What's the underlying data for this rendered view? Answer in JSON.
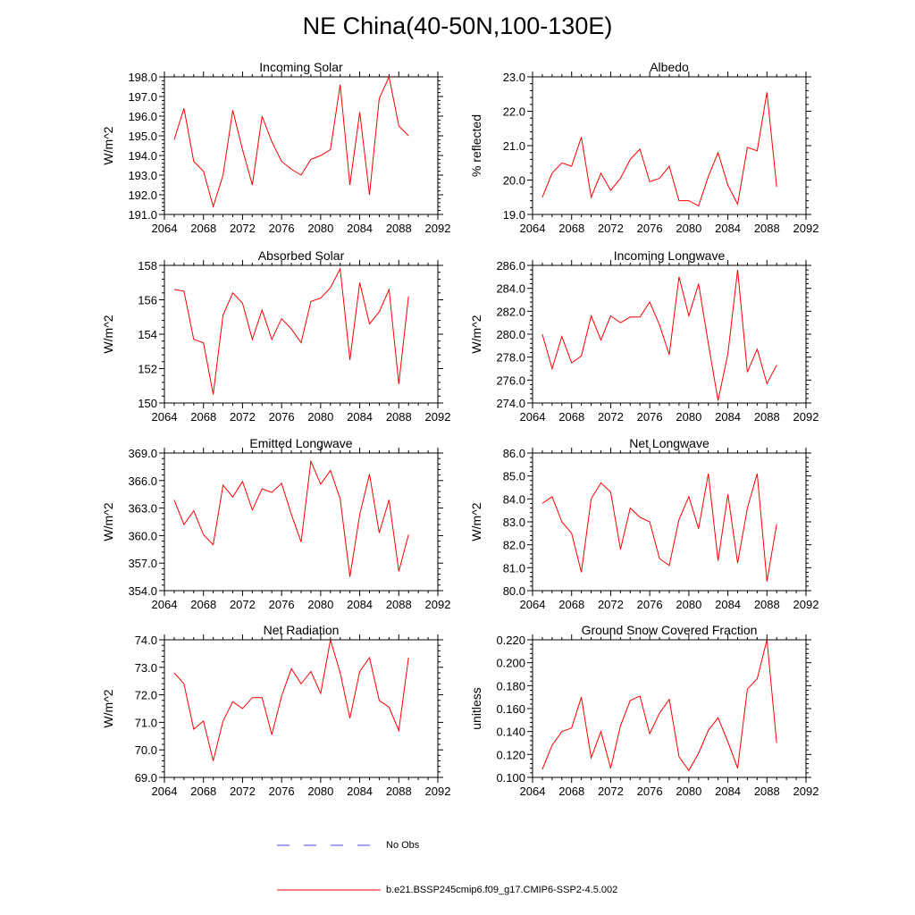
{
  "title": "NE China(40-50N,100-130E)",
  "legend": {
    "obs_label": "No Obs",
    "model_label": "b.e21.BSSP245cmip6.f09_g17.CMIP6-SSP2-4.5.002",
    "obs_color": "#4a4aff",
    "model_color": "#ff0000"
  },
  "chart_data": [
    {
      "type": "line",
      "title": "Incoming Solar",
      "xlabel": "",
      "ylabel": "W/m^2",
      "xlim": [
        2064,
        2092
      ],
      "ylim": [
        191.0,
        198.0
      ],
      "decimals": 1,
      "xticks": [
        2064,
        2068,
        2072,
        2076,
        2080,
        2084,
        2088,
        2092
      ],
      "yticks": [
        191.0,
        192.0,
        193.0,
        194.0,
        195.0,
        196.0,
        197.0,
        198.0
      ],
      "x": [
        2065,
        2066,
        2067,
        2068,
        2069,
        2070,
        2071,
        2072,
        2073,
        2074,
        2075,
        2076,
        2077,
        2078,
        2079,
        2080,
        2081,
        2082,
        2083,
        2084,
        2085,
        2086,
        2087,
        2088,
        2089
      ],
      "series": [
        {
          "name": "b.e21.BSSP245cmip6.f09_g17.CMIP6-SSP2-4.5.002",
          "values": [
            194.8,
            196.4,
            193.7,
            193.2,
            191.4,
            193.0,
            196.3,
            194.3,
            192.5,
            196.0,
            194.7,
            193.7,
            193.3,
            193.0,
            193.8,
            194.0,
            194.3,
            197.6,
            192.5,
            196.2,
            192.0,
            196.9,
            198.0,
            195.5,
            195.0
          ]
        }
      ]
    },
    {
      "type": "line",
      "title": "Albedo",
      "xlabel": "",
      "ylabel": "% reflected",
      "xlim": [
        2064,
        2092
      ],
      "ylim": [
        19.0,
        23.0
      ],
      "decimals": 1,
      "xticks": [
        2064,
        2068,
        2072,
        2076,
        2080,
        2084,
        2088,
        2092
      ],
      "yticks": [
        19.0,
        20.0,
        21.0,
        22.0,
        23.0
      ],
      "x": [
        2065,
        2066,
        2067,
        2068,
        2069,
        2070,
        2071,
        2072,
        2073,
        2074,
        2075,
        2076,
        2077,
        2078,
        2079,
        2080,
        2081,
        2082,
        2083,
        2084,
        2085,
        2086,
        2087,
        2088,
        2089
      ],
      "series": [
        {
          "name": "b.e21.BSSP245cmip6.f09_g17.CMIP6-SSP2-4.5.002",
          "values": [
            19.5,
            20.2,
            20.5,
            20.4,
            21.25,
            19.5,
            20.2,
            19.7,
            20.05,
            20.6,
            20.9,
            19.95,
            20.05,
            20.4,
            19.4,
            19.4,
            19.25,
            20.1,
            20.8,
            19.85,
            19.3,
            20.95,
            20.85,
            22.55,
            19.8
          ]
        }
      ]
    },
    {
      "type": "line",
      "title": "Absorbed Solar",
      "xlabel": "",
      "ylabel": "W/m^2",
      "xlim": [
        2064,
        2092
      ],
      "ylim": [
        150,
        158
      ],
      "decimals": 0,
      "xticks": [
        2064,
        2068,
        2072,
        2076,
        2080,
        2084,
        2088,
        2092
      ],
      "yticks": [
        150,
        152,
        154,
        156,
        158
      ],
      "x": [
        2065,
        2066,
        2067,
        2068,
        2069,
        2070,
        2071,
        2072,
        2073,
        2074,
        2075,
        2076,
        2077,
        2078,
        2079,
        2080,
        2081,
        2082,
        2083,
        2084,
        2085,
        2086,
        2087,
        2088,
        2089
      ],
      "series": [
        {
          "name": "b.e21.BSSP245cmip6.f09_g17.CMIP6-SSP2-4.5.002",
          "values": [
            156.6,
            156.5,
            153.7,
            153.5,
            150.5,
            155.1,
            156.4,
            155.8,
            153.7,
            155.4,
            153.7,
            154.9,
            154.3,
            153.5,
            155.9,
            156.1,
            156.7,
            157.8,
            152.5,
            157.0,
            154.6,
            155.3,
            156.6,
            151.1,
            156.2
          ]
        }
      ]
    },
    {
      "type": "line",
      "title": "Incoming Longwave",
      "xlabel": "",
      "ylabel": "W/m^2",
      "xlim": [
        2064,
        2092
      ],
      "ylim": [
        274.0,
        286.0
      ],
      "decimals": 1,
      "xticks": [
        2064,
        2068,
        2072,
        2076,
        2080,
        2084,
        2088,
        2092
      ],
      "yticks": [
        274.0,
        276.0,
        278.0,
        280.0,
        282.0,
        284.0,
        286.0
      ],
      "x": [
        2065,
        2066,
        2067,
        2068,
        2069,
        2070,
        2071,
        2072,
        2073,
        2074,
        2075,
        2076,
        2077,
        2078,
        2079,
        2080,
        2081,
        2082,
        2083,
        2084,
        2085,
        2086,
        2087,
        2088,
        2089
      ],
      "series": [
        {
          "name": "b.e21.BSSP245cmip6.f09_g17.CMIP6-SSP2-4.5.002",
          "values": [
            280.0,
            277.0,
            279.8,
            277.5,
            278.1,
            281.6,
            279.5,
            281.6,
            281.0,
            281.5,
            281.5,
            282.8,
            280.8,
            278.2,
            285.0,
            281.6,
            284.4,
            279.2,
            274.2,
            278.3,
            285.6,
            276.7,
            278.7,
            275.7,
            277.3
          ]
        }
      ]
    },
    {
      "type": "line",
      "title": "Emitted Longwave",
      "xlabel": "",
      "ylabel": "W/m^2",
      "xlim": [
        2064,
        2092
      ],
      "ylim": [
        354.0,
        369.0
      ],
      "decimals": 1,
      "xticks": [
        2064,
        2068,
        2072,
        2076,
        2080,
        2084,
        2088,
        2092
      ],
      "yticks": [
        354.0,
        357.0,
        360.0,
        363.0,
        366.0,
        369.0
      ],
      "x": [
        2065,
        2066,
        2067,
        2068,
        2069,
        2070,
        2071,
        2072,
        2073,
        2074,
        2075,
        2076,
        2077,
        2078,
        2079,
        2080,
        2081,
        2082,
        2083,
        2084,
        2085,
        2086,
        2087,
        2088,
        2089
      ],
      "series": [
        {
          "name": "b.e21.BSSP245cmip6.f09_g17.CMIP6-SSP2-4.5.002",
          "values": [
            363.9,
            361.2,
            362.7,
            360.1,
            359.0,
            365.5,
            364.2,
            365.9,
            362.8,
            365.1,
            364.7,
            365.7,
            362.3,
            359.3,
            368.1,
            365.6,
            367.1,
            364.0,
            355.5,
            362.3,
            366.7,
            360.3,
            363.9,
            356.1,
            360.1
          ]
        }
      ]
    },
    {
      "type": "line",
      "title": "Net Longwave",
      "xlabel": "",
      "ylabel": "W/m^2",
      "xlim": [
        2064,
        2092
      ],
      "ylim": [
        80.0,
        86.0
      ],
      "decimals": 1,
      "xticks": [
        2064,
        2068,
        2072,
        2076,
        2080,
        2084,
        2088,
        2092
      ],
      "yticks": [
        80.0,
        81.0,
        82.0,
        83.0,
        84.0,
        85.0,
        86.0
      ],
      "x": [
        2065,
        2066,
        2067,
        2068,
        2069,
        2070,
        2071,
        2072,
        2073,
        2074,
        2075,
        2076,
        2077,
        2078,
        2079,
        2080,
        2081,
        2082,
        2083,
        2084,
        2085,
        2086,
        2087,
        2088,
        2089
      ],
      "series": [
        {
          "name": "b.e21.BSSP245cmip6.f09_g17.CMIP6-SSP2-4.5.002",
          "values": [
            83.8,
            84.1,
            83.0,
            82.5,
            80.8,
            84.0,
            84.7,
            84.3,
            81.8,
            83.6,
            83.2,
            83.0,
            81.4,
            81.1,
            83.1,
            84.1,
            82.7,
            85.1,
            81.3,
            84.2,
            81.2,
            83.6,
            85.1,
            80.4,
            82.9
          ]
        }
      ]
    },
    {
      "type": "line",
      "title": "Net Radiation",
      "xlabel": "",
      "ylabel": "W/m^2",
      "xlim": [
        2064,
        2092
      ],
      "ylim": [
        69.0,
        74.0
      ],
      "decimals": 1,
      "xticks": [
        2064,
        2068,
        2072,
        2076,
        2080,
        2084,
        2088,
        2092
      ],
      "yticks": [
        69.0,
        70.0,
        71.0,
        72.0,
        73.0,
        74.0
      ],
      "x": [
        2065,
        2066,
        2067,
        2068,
        2069,
        2070,
        2071,
        2072,
        2073,
        2074,
        2075,
        2076,
        2077,
        2078,
        2079,
        2080,
        2081,
        2082,
        2083,
        2084,
        2085,
        2086,
        2087,
        2088,
        2089
      ],
      "series": [
        {
          "name": "b.e21.BSSP245cmip6.f09_g17.CMIP6-SSP2-4.5.002",
          "values": [
            72.8,
            72.4,
            70.75,
            71.05,
            69.6,
            71.05,
            71.75,
            71.5,
            71.9,
            71.9,
            70.55,
            71.95,
            72.95,
            72.4,
            72.85,
            72.05,
            74.0,
            72.8,
            71.15,
            72.85,
            73.35,
            71.8,
            71.55,
            70.7,
            73.35
          ]
        }
      ]
    },
    {
      "type": "line",
      "title": "Ground Snow Covered Fraction",
      "xlabel": "",
      "ylabel": "unitless",
      "xlim": [
        2064,
        2092
      ],
      "ylim": [
        0.1,
        0.22
      ],
      "decimals": 3,
      "xticks": [
        2064,
        2068,
        2072,
        2076,
        2080,
        2084,
        2088,
        2092
      ],
      "yticks": [
        0.1,
        0.12,
        0.14,
        0.16,
        0.18,
        0.2,
        0.22
      ],
      "x": [
        2065,
        2066,
        2067,
        2068,
        2069,
        2070,
        2071,
        2072,
        2073,
        2074,
        2075,
        2076,
        2077,
        2078,
        2079,
        2080,
        2081,
        2082,
        2083,
        2084,
        2085,
        2086,
        2087,
        2088,
        2089
      ],
      "series": [
        {
          "name": "b.e21.BSSP245cmip6.f09_g17.CMIP6-SSP2-4.5.002",
          "values": [
            0.107,
            0.128,
            0.14,
            0.143,
            0.17,
            0.117,
            0.14,
            0.108,
            0.145,
            0.167,
            0.171,
            0.138,
            0.156,
            0.168,
            0.118,
            0.106,
            0.121,
            0.141,
            0.152,
            0.131,
            0.108,
            0.177,
            0.186,
            0.22,
            0.13
          ]
        }
      ]
    }
  ]
}
